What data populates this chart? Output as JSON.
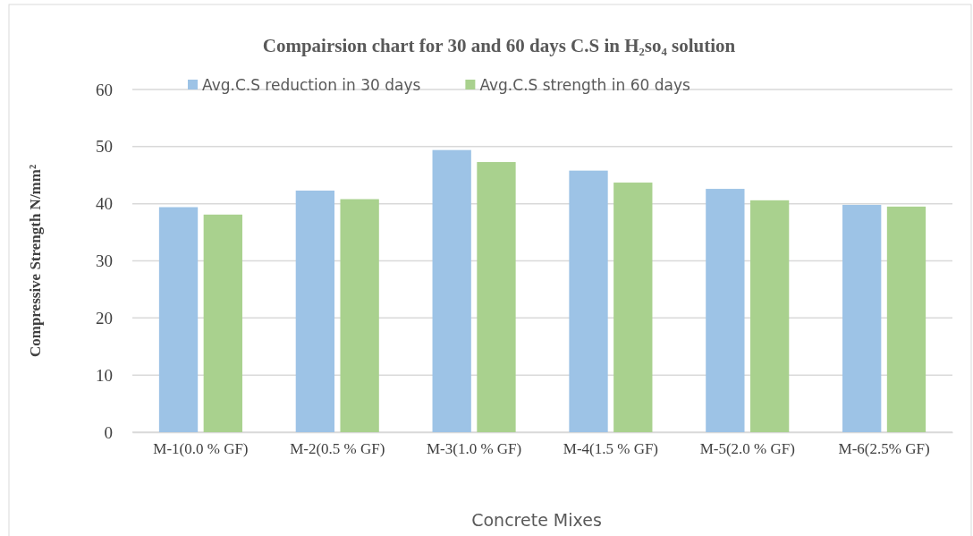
{
  "chart_data": {
    "type": "bar",
    "title": "Compairsion  chart for 30 and 60 days C.S in H₂so₄ solution",
    "xlabel": "Concrete Mixes",
    "ylabel": "Compressive Strength N/mm²",
    "categories": [
      "M-1(0.0 % GF)",
      "M-2(0.5 % GF)",
      "M-3(1.0 % GF)",
      "M-4(1.5 % GF)",
      "M-5(2.0 % GF)",
      "M-6(2.5% GF)"
    ],
    "series": [
      {
        "name": "Avg.C.S reduction in 30 days",
        "color": "#9dc3e6",
        "values": [
          39.4,
          42.3,
          49.4,
          45.8,
          42.6,
          39.8
        ]
      },
      {
        "name": "Avg.C.S strength in 60 days",
        "color": "#a9d18e",
        "values": [
          38.1,
          40.8,
          47.3,
          43.7,
          40.6,
          39.5
        ]
      }
    ],
    "ylim": [
      0,
      60
    ],
    "yticks": [
      0,
      10,
      20,
      30,
      40,
      50,
      60
    ],
    "grid": "y",
    "legend": "top"
  }
}
